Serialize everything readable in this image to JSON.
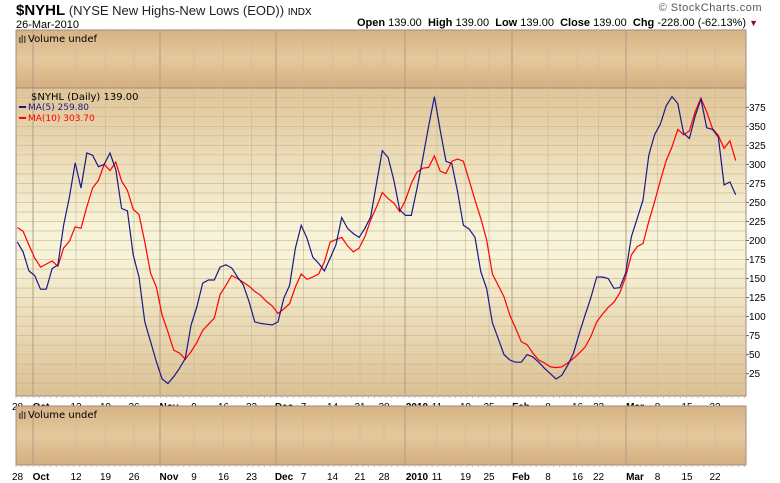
{
  "header": {
    "symbol": "$NYHL",
    "name": "(NYSE New Highs-New Lows (EOD))",
    "exchange": "INDX",
    "date": "26-Mar-2010",
    "copyright": "© StockCharts.com",
    "open_label": "Open",
    "open": "139.00",
    "high_label": "High",
    "high": "139.00",
    "low_label": "Low",
    "low": "139.00",
    "close_label": "Close",
    "close": "139.00",
    "chg_label": "Chg",
    "chg": "-228.00 (-62.13%)",
    "chg_icon": "down-triangle-icon"
  },
  "colors": {
    "ma5": "#1a1a8c",
    "ma10": "#ff0000",
    "down": "#8b0a2a"
  },
  "top_panel": {
    "label": "Volume undef",
    "icon": "volume-bars-icon"
  },
  "bottom_panel": {
    "label": "Volume undef",
    "icon": "volume-bars-icon"
  },
  "chart_data": {
    "type": "line",
    "title": "$NYHL (Daily) 139.00",
    "ylim": [
      0,
      400
    ],
    "y_ticks": [
      25,
      50,
      75,
      100,
      125,
      150,
      175,
      200,
      225,
      250,
      275,
      300,
      325,
      350,
      375
    ],
    "x_tick_labels": [
      "28",
      "Oct",
      "12",
      "19",
      "26",
      "Nov",
      "9",
      "16",
      "23",
      "Dec",
      "7",
      "14",
      "21",
      "28",
      "2010",
      "11",
      "19",
      "25",
      "Feb",
      "8",
      "16",
      "22",
      "Mar",
      "8",
      "15",
      "22"
    ],
    "grid": true,
    "legend": "top-left",
    "series": [
      {
        "name": "MA(5) 259.80",
        "color": "#1a1a8c",
        "values": [
          198,
          185,
          160,
          154,
          136,
          136,
          163,
          168,
          220,
          257,
          302,
          269,
          315,
          312,
          297,
          300,
          315,
          293,
          242,
          239,
          181,
          152,
          93,
          67,
          41,
          18,
          12,
          21,
          32,
          45,
          89,
          113,
          144,
          148,
          148,
          165,
          168,
          164,
          152,
          142,
          120,
          93,
          91,
          90,
          89,
          93,
          124,
          141,
          190,
          220,
          203,
          178,
          170,
          160,
          177,
          194,
          230,
          216,
          209,
          204,
          216,
          231,
          275,
          318,
          309,
          279,
          240,
          233,
          233,
          269,
          308,
          350,
          389,
          345,
          304,
          301,
          264,
          220,
          215,
          204,
          159,
          137,
          92,
          71,
          50,
          43,
          40,
          40,
          50,
          47,
          40,
          32,
          25,
          18,
          23,
          36,
          52,
          78,
          102,
          125,
          152,
          152,
          150,
          137,
          138,
          157,
          205,
          229,
          253,
          312,
          339,
          353,
          377,
          389,
          380,
          341,
          334,
          363,
          386,
          348,
          346,
          336,
          273,
          277,
          260
        ]
      },
      {
        "name": "MA(10) 303.70",
        "color": "#ff0000",
        "values": [
          217,
          212,
          194,
          177,
          165,
          169,
          173,
          166,
          190,
          199,
          218,
          216,
          244,
          269,
          279,
          300,
          292,
          303,
          278,
          266,
          241,
          234,
          198,
          157,
          139,
          102,
          80,
          56,
          52,
          44,
          54,
          66,
          82,
          90,
          98,
          129,
          141,
          154,
          150,
          145,
          140,
          133,
          128,
          120,
          114,
          104,
          110,
          117,
          139,
          156,
          149,
          152,
          156,
          172,
          198,
          201,
          204,
          193,
          185,
          190,
          205,
          227,
          244,
          263,
          255,
          249,
          238,
          253,
          275,
          290,
          295,
          296,
          311,
          291,
          288,
          304,
          307,
          304,
          279,
          253,
          229,
          201,
          156,
          141,
          126,
          102,
          85,
          67,
          63,
          52,
          43,
          39,
          34,
          33,
          34,
          39,
          45,
          52,
          60,
          74,
          93,
          103,
          112,
          119,
          131,
          152,
          181,
          192,
          196,
          225,
          251,
          279,
          305,
          323,
          346,
          339,
          344,
          369,
          387,
          369,
          347,
          338,
          321,
          331,
          305
        ]
      }
    ]
  }
}
